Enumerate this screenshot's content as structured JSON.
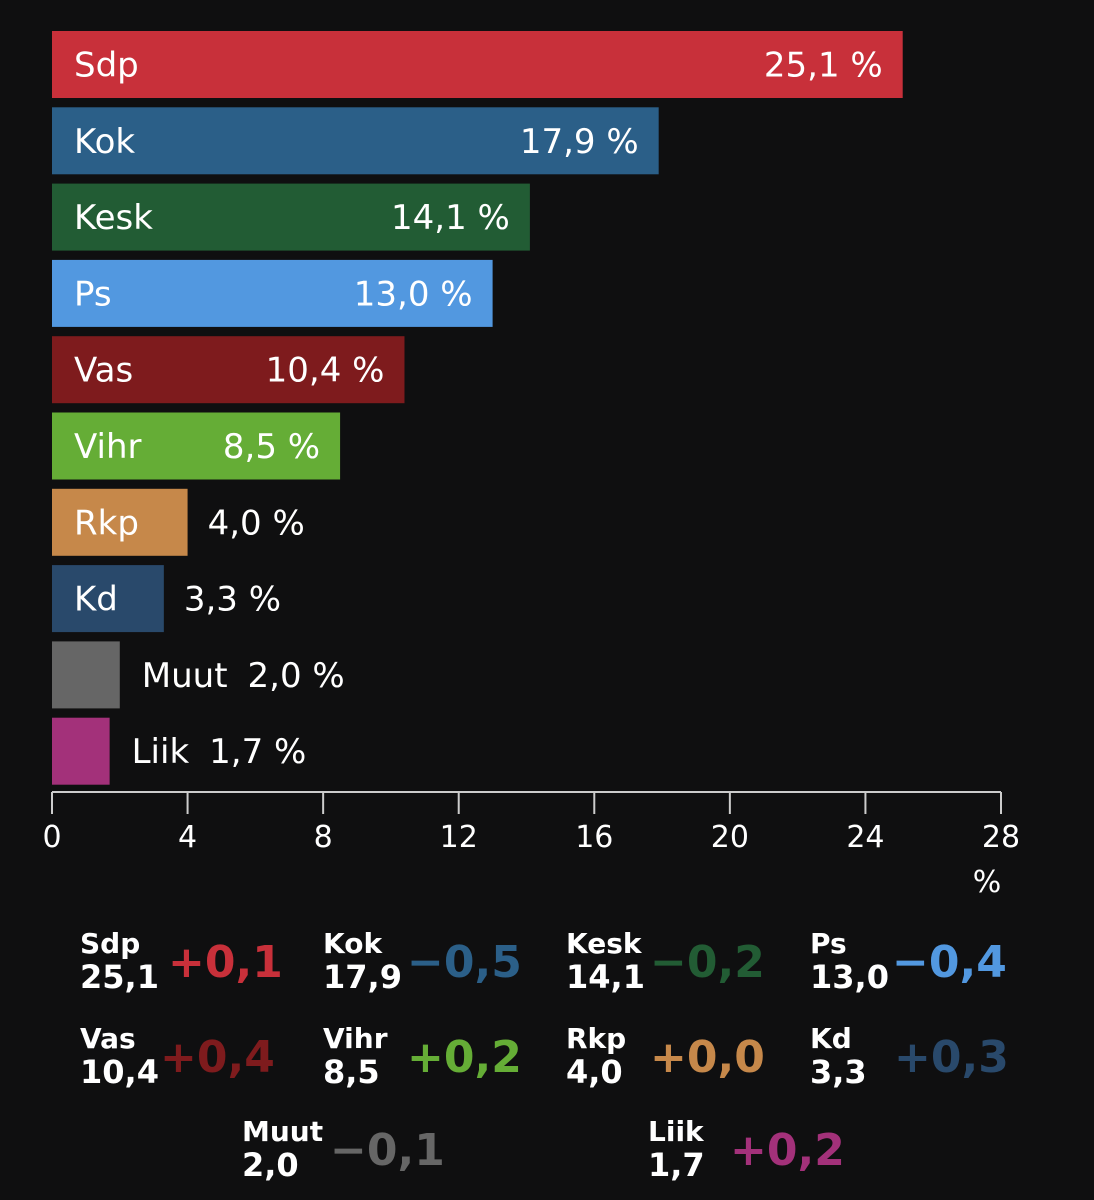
{
  "chart_data": {
    "type": "bar",
    "orientation": "horizontal",
    "unit": "%",
    "categories": [
      "Sdp",
      "Kok",
      "Kesk",
      "Ps",
      "Vas",
      "Vihr",
      "Rkp",
      "Kd",
      "Muut",
      "Liik"
    ],
    "values": [
      25.1,
      17.9,
      14.1,
      13.0,
      10.4,
      8.5,
      4.0,
      3.3,
      2.0,
      1.7
    ],
    "value_labels": [
      "25,1 %",
      "17,9 %",
      "14,1 %",
      "13,0 %",
      "10,4 %",
      "8,5 %",
      "4,0 %",
      "3,3 %",
      "2,0 %",
      "1,7 %"
    ],
    "colors": [
      "#c8303a",
      "#2b5f88",
      "#225c34",
      "#5298e0",
      "#7e1b1d",
      "#65ad36",
      "#c6884a",
      "#29496b",
      "#666666",
      "#a3317a"
    ],
    "xlim": [
      0,
      28
    ],
    "xticks": [
      "0",
      "4",
      "8",
      "12",
      "16",
      "20",
      "24",
      "28"
    ],
    "xunit": "%",
    "grid": false,
    "summary": [
      {
        "party": "Sdp",
        "value": "25,1",
        "change": "+0,1",
        "color": "#c8303a"
      },
      {
        "party": "Kok",
        "value": "17,9",
        "change": "−0,5",
        "color": "#2b5f88"
      },
      {
        "party": "Kesk",
        "value": "14,1",
        "change": "−0,2",
        "color": "#225c34"
      },
      {
        "party": "Ps",
        "value": "13,0",
        "change": "−0,4",
        "color": "#5298e0"
      },
      {
        "party": "Vas",
        "value": "10,4",
        "change": "+0,4",
        "color": "#7e1b1d"
      },
      {
        "party": "Vihr",
        "value": "8,5",
        "change": "+0,2",
        "color": "#65ad36"
      },
      {
        "party": "Rkp",
        "value": "4,0",
        "change": "+0,0",
        "color": "#c6884a"
      },
      {
        "party": "Kd",
        "value": "3,3",
        "change": "+0,3",
        "color": "#29496b"
      },
      {
        "party": "Muut",
        "value": "2,0",
        "change": "−0,1",
        "color": "#666666"
      },
      {
        "party": "Liik",
        "value": "1,7",
        "change": "+0,2",
        "color": "#a3317a"
      }
    ]
  }
}
